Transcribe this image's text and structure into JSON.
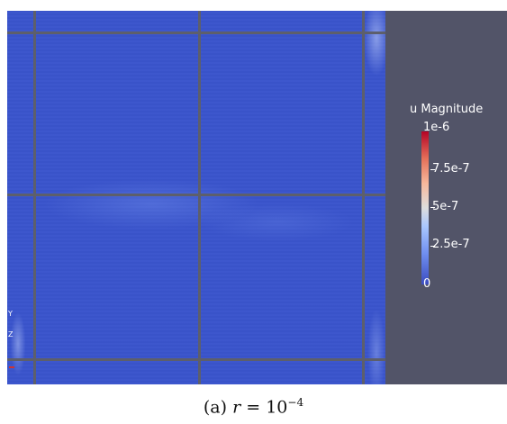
{
  "colorbar": {
    "title": "u Magnitude",
    "max_label": "1e-6",
    "labels": [
      "7.5e-7",
      "5e-7",
      "2.5e-7",
      "0"
    ]
  },
  "axes": {
    "y_label": "Y",
    "z_label": "Z"
  },
  "caption": {
    "prefix": "(a)",
    "variable": "r",
    "equals": "=",
    "base": "10",
    "exponent": "−4"
  },
  "colors": {
    "background": "#525468",
    "field": "#3a54cc",
    "grid": "#5d5f6b",
    "colormap_low": "#3b4cc0",
    "colormap_mid": "#dddddd",
    "colormap_high": "#b40426"
  }
}
